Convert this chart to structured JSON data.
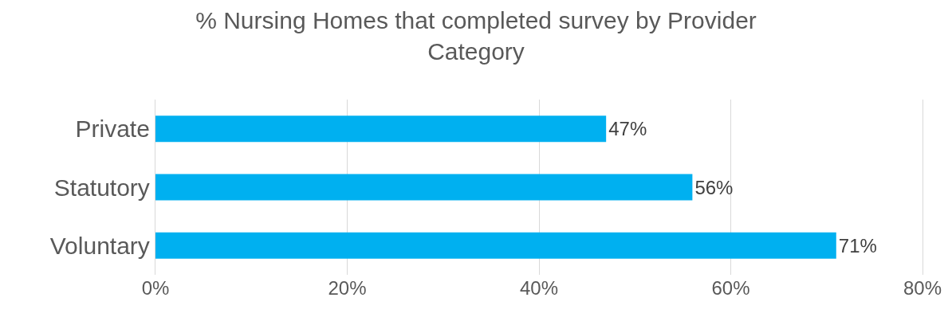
{
  "chart_data": {
    "type": "bar",
    "orientation": "horizontal",
    "title": "% Nursing Homes that completed survey by Provider Category",
    "categories": [
      "Private",
      "Statutory",
      "Voluntary"
    ],
    "values": [
      47,
      56,
      71
    ],
    "value_labels": [
      "47%",
      "56%",
      "71%"
    ],
    "color": "#00b0f0",
    "xlim": [
      0,
      80
    ],
    "xticks": [
      {
        "value": 0,
        "label": "0%"
      },
      {
        "value": 20,
        "label": "20%"
      },
      {
        "value": 40,
        "label": "40%"
      },
      {
        "value": 60,
        "label": "60%"
      },
      {
        "value": 80,
        "label": "80%"
      }
    ],
    "grid": "x"
  }
}
